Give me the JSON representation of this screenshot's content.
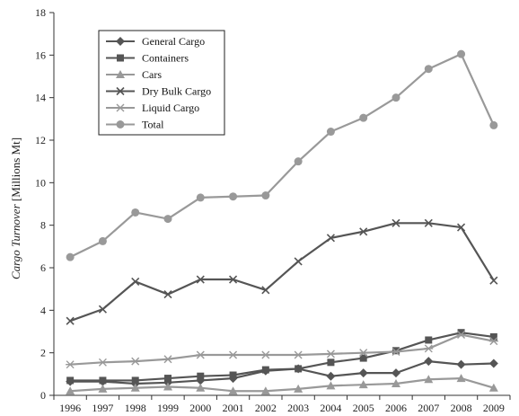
{
  "chart_data": {
    "type": "line",
    "x": [
      "1996",
      "1997",
      "1998",
      "1999",
      "2000",
      "2001",
      "2002",
      "2003",
      "2004",
      "2005",
      "2006",
      "2007",
      "2008",
      "2009"
    ],
    "ylabel_italic": "Cargo Turnover",
    "ylabel_unit": " [Millions Mt]",
    "ylim": [
      0,
      18
    ],
    "yticks": [
      0,
      2,
      4,
      6,
      8,
      10,
      12,
      14,
      16,
      18
    ],
    "grid": false,
    "legend_position": "top-left",
    "series": [
      {
        "name": "General Cargo",
        "marker": "diamond",
        "color": "#555555",
        "values": [
          0.65,
          0.65,
          0.55,
          0.6,
          0.7,
          0.8,
          1.15,
          1.25,
          0.9,
          1.05,
          1.05,
          1.6,
          1.45,
          1.5
        ]
      },
      {
        "name": "Containers",
        "marker": "square",
        "color": "#555555",
        "values": [
          0.7,
          0.7,
          0.7,
          0.8,
          0.9,
          0.95,
          1.2,
          1.25,
          1.55,
          1.75,
          2.1,
          2.6,
          2.95,
          2.75
        ]
      },
      {
        "name": "Cars",
        "marker": "triangle",
        "color": "#999999",
        "values": [
          0.2,
          0.3,
          0.35,
          0.4,
          0.35,
          0.2,
          0.2,
          0.3,
          0.45,
          0.5,
          0.55,
          0.75,
          0.8,
          0.35
        ]
      },
      {
        "name": "Dry Bulk Cargo",
        "marker": "x",
        "color": "#555555",
        "values": [
          3.5,
          4.05,
          5.35,
          4.75,
          5.45,
          5.45,
          4.95,
          6.3,
          7.4,
          7.7,
          8.1,
          8.1,
          7.9,
          5.4
        ]
      },
      {
        "name": "Liquid Cargo",
        "marker": "asterisk",
        "color": "#999999",
        "values": [
          1.45,
          1.55,
          1.6,
          1.7,
          1.9,
          1.9,
          1.9,
          1.9,
          1.95,
          2.0,
          2.05,
          2.2,
          2.85,
          2.55
        ]
      },
      {
        "name": "Total",
        "marker": "circle",
        "color": "#999999",
        "values": [
          6.5,
          7.25,
          8.6,
          8.3,
          9.3,
          9.35,
          9.4,
          11.0,
          12.4,
          13.05,
          14.0,
          15.35,
          16.05,
          12.7
        ]
      }
    ]
  }
}
